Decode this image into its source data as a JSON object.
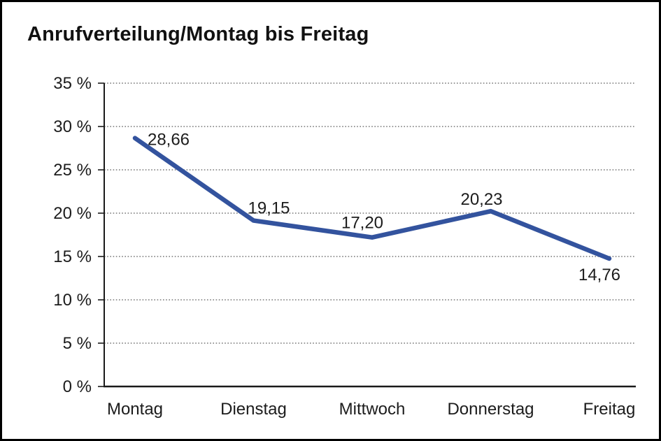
{
  "title": "Anrufverteilung/Montag bis Freitag",
  "chart_data": {
    "type": "line",
    "title": "Anrufverteilung/Montag bis Freitag",
    "categories": [
      "Montag",
      "Dienstag",
      "Mittwoch",
      "Donnerstag",
      "Freitag"
    ],
    "series": [
      {
        "name": "Anrufverteilung",
        "values": [
          28.66,
          19.15,
          17.2,
          20.23,
          14.76
        ],
        "value_labels": [
          "28,66",
          "19,15",
          "17,20",
          "20,23",
          "14,76"
        ]
      }
    ],
    "xlabel": "",
    "ylabel": "",
    "ylim": [
      0,
      35
    ],
    "ytick_step": 5,
    "ytick_labels": [
      "0 %",
      "5 %",
      "10 %",
      "15 %",
      "20 %",
      "25 %",
      "30 %",
      "35 %"
    ],
    "grid": "horizontal-dotted",
    "legend": "none",
    "line_color": "#33539E",
    "axis_color": "#1a1a1a",
    "gridline_color": "#767676",
    "label_color": "#1c1c1c"
  }
}
